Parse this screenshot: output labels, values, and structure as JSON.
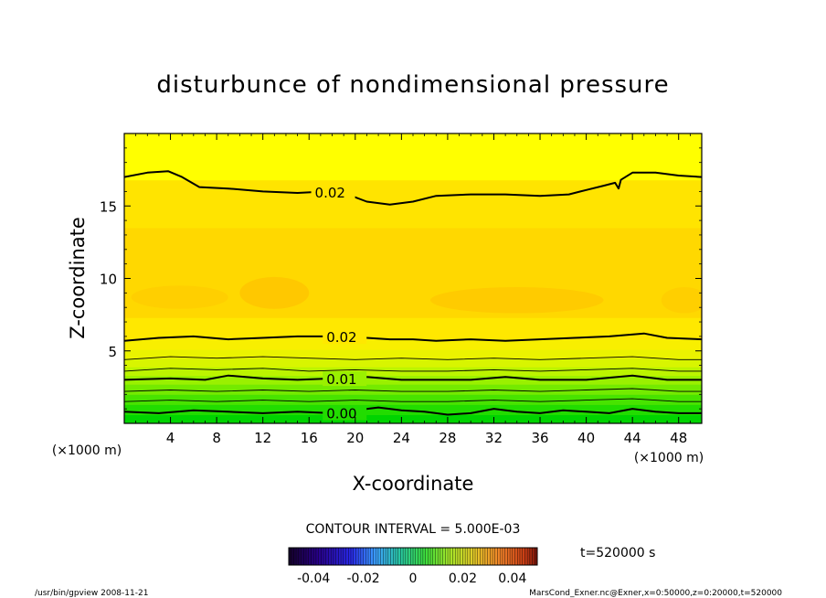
{
  "chart_data": {
    "type": "contour",
    "title": "disturbunce of nondimensional pressure",
    "xlabel": "X-coordinate",
    "ylabel": "Z-coordinate",
    "x_unit_label": "(×1000 m)",
    "y_unit_label": "(×1000 m)",
    "xlim": [
      0,
      50
    ],
    "ylim": [
      0,
      20
    ],
    "x_ticks": [
      4,
      8,
      12,
      16,
      20,
      24,
      28,
      32,
      36,
      40,
      44,
      48
    ],
    "y_ticks": [
      5,
      10,
      15
    ],
    "contour_interval_label": "CONTOUR INTERVAL = 5.000E-03",
    "time_label": "t=520000 s",
    "colorbar": {
      "min": -0.05,
      "max": 0.05,
      "tick_values": [
        -0.04,
        -0.02,
        0,
        0.02,
        0.04
      ],
      "tick_labels": [
        "-0.04",
        "-0.02",
        "0",
        "0.02",
        "0.04"
      ]
    },
    "fill_bands": [
      {
        "z_from": 0.0,
        "z_to": 0.6,
        "level": -0.005,
        "color": "#00d400"
      },
      {
        "z_from": 0.6,
        "z_to": 1.3,
        "level": 0.0,
        "color": "#22dc00"
      },
      {
        "z_from": 1.3,
        "z_to": 2.0,
        "level": 0.005,
        "color": "#48e300"
      },
      {
        "z_from": 2.0,
        "z_to": 2.7,
        "level": 0.008,
        "color": "#74ea00"
      },
      {
        "z_from": 2.7,
        "z_to": 3.3,
        "level": 0.01,
        "color": "#9af000"
      },
      {
        "z_from": 3.3,
        "z_to": 3.9,
        "level": 0.012,
        "color": "#bcf400"
      },
      {
        "z_from": 3.9,
        "z_to": 4.5,
        "level": 0.015,
        "color": "#d8f500"
      },
      {
        "z_from": 4.5,
        "z_to": 5.1,
        "level": 0.017,
        "color": "#ebf300"
      },
      {
        "z_from": 5.1,
        "z_to": 5.8,
        "level": 0.019,
        "color": "#f8ef00"
      },
      {
        "z_from": 5.8,
        "z_to": 7.3,
        "level": 0.021,
        "color": "#ffe800"
      },
      {
        "z_from": 7.3,
        "z_to": 13.5,
        "level": 0.024,
        "color": "#ffd800"
      },
      {
        "z_from": 13.5,
        "z_to": 16.8,
        "level": 0.022,
        "color": "#ffe400"
      },
      {
        "z_from": 16.8,
        "z_to": 20.0,
        "level": 0.018,
        "color": "#ffff00"
      }
    ],
    "contours": [
      {
        "level": "0.02",
        "label": "0.02",
        "label_x": 16.5,
        "thick": true,
        "points": [
          [
            0,
            17.0
          ],
          [
            2,
            17.3
          ],
          [
            3.8,
            17.4
          ],
          [
            5,
            17.0
          ],
          [
            6.5,
            16.3
          ],
          [
            9,
            16.2
          ],
          [
            12,
            16.0
          ],
          [
            15,
            15.9
          ],
          [
            17.5,
            16.0
          ],
          [
            19,
            15.9
          ],
          [
            21,
            15.3
          ],
          [
            23,
            15.1
          ],
          [
            25,
            15.3
          ],
          [
            27,
            15.7
          ],
          [
            30,
            15.8
          ],
          [
            33,
            15.8
          ],
          [
            36,
            15.7
          ],
          [
            38.5,
            15.8
          ],
          [
            40,
            16.1
          ],
          [
            41.5,
            16.4
          ],
          [
            42.5,
            16.6
          ],
          [
            42.8,
            16.2
          ],
          [
            43,
            16.8
          ],
          [
            44,
            17.3
          ],
          [
            46,
            17.3
          ],
          [
            48,
            17.1
          ],
          [
            50,
            17.0
          ]
        ]
      },
      {
        "level": "0.02",
        "label": "0.02",
        "label_x": 17.5,
        "thick": true,
        "points": [
          [
            0,
            5.7
          ],
          [
            3,
            5.9
          ],
          [
            6,
            6.0
          ],
          [
            9,
            5.8
          ],
          [
            12,
            5.9
          ],
          [
            15,
            6.0
          ],
          [
            18,
            6.0
          ],
          [
            21,
            5.9
          ],
          [
            23,
            5.8
          ],
          [
            25,
            5.8
          ],
          [
            27,
            5.7
          ],
          [
            30,
            5.8
          ],
          [
            33,
            5.7
          ],
          [
            36,
            5.8
          ],
          [
            39,
            5.9
          ],
          [
            42,
            6.0
          ],
          [
            45,
            6.2
          ],
          [
            47,
            5.9
          ],
          [
            50,
            5.8
          ]
        ]
      },
      {
        "level": "0.015",
        "label": "",
        "label_x": null,
        "thick": false,
        "points": [
          [
            0,
            4.4
          ],
          [
            4,
            4.6
          ],
          [
            8,
            4.5
          ],
          [
            12,
            4.6
          ],
          [
            16,
            4.5
          ],
          [
            20,
            4.4
          ],
          [
            24,
            4.5
          ],
          [
            28,
            4.4
          ],
          [
            32,
            4.5
          ],
          [
            36,
            4.4
          ],
          [
            40,
            4.5
          ],
          [
            44,
            4.6
          ],
          [
            48,
            4.4
          ],
          [
            50,
            4.4
          ]
        ]
      },
      {
        "level": "0.0125",
        "label": "",
        "label_x": null,
        "thick": false,
        "points": [
          [
            0,
            3.6
          ],
          [
            4,
            3.8
          ],
          [
            8,
            3.7
          ],
          [
            12,
            3.8
          ],
          [
            16,
            3.6
          ],
          [
            20,
            3.7
          ],
          [
            24,
            3.6
          ],
          [
            28,
            3.6
          ],
          [
            32,
            3.7
          ],
          [
            36,
            3.6
          ],
          [
            40,
            3.7
          ],
          [
            44,
            3.8
          ],
          [
            48,
            3.6
          ],
          [
            50,
            3.6
          ]
        ]
      },
      {
        "level": "0.01",
        "label": "0.01",
        "label_x": 17.5,
        "thick": true,
        "points": [
          [
            0,
            3.0
          ],
          [
            4,
            3.1
          ],
          [
            7,
            3.0
          ],
          [
            9,
            3.3
          ],
          [
            12,
            3.1
          ],
          [
            15,
            3.0
          ],
          [
            18,
            3.1
          ],
          [
            21,
            3.2
          ],
          [
            24,
            3.0
          ],
          [
            27,
            3.0
          ],
          [
            30,
            3.0
          ],
          [
            33,
            3.2
          ],
          [
            36,
            3.0
          ],
          [
            40,
            3.0
          ],
          [
            44,
            3.3
          ],
          [
            47,
            3.0
          ],
          [
            50,
            3.0
          ]
        ]
      },
      {
        "level": "0.0075",
        "label": "",
        "label_x": null,
        "thick": false,
        "points": [
          [
            0,
            2.2
          ],
          [
            4,
            2.3
          ],
          [
            8,
            2.2
          ],
          [
            12,
            2.3
          ],
          [
            16,
            2.2
          ],
          [
            20,
            2.3
          ],
          [
            24,
            2.2
          ],
          [
            28,
            2.2
          ],
          [
            32,
            2.3
          ],
          [
            36,
            2.2
          ],
          [
            40,
            2.3
          ],
          [
            44,
            2.4
          ],
          [
            48,
            2.2
          ],
          [
            50,
            2.2
          ]
        ]
      },
      {
        "level": "0.005",
        "label": "",
        "label_x": null,
        "thick": false,
        "points": [
          [
            0,
            1.5
          ],
          [
            4,
            1.6
          ],
          [
            8,
            1.5
          ],
          [
            12,
            1.6
          ],
          [
            16,
            1.5
          ],
          [
            20,
            1.6
          ],
          [
            24,
            1.5
          ],
          [
            28,
            1.5
          ],
          [
            32,
            1.6
          ],
          [
            36,
            1.5
          ],
          [
            40,
            1.6
          ],
          [
            44,
            1.7
          ],
          [
            48,
            1.5
          ],
          [
            50,
            1.5
          ]
        ]
      },
      {
        "level": "0.00",
        "label": "0.00",
        "label_x": 17.5,
        "thick": true,
        "points": [
          [
            0,
            0.8
          ],
          [
            3,
            0.7
          ],
          [
            6,
            0.9
          ],
          [
            9,
            0.8
          ],
          [
            12,
            0.7
          ],
          [
            15,
            0.8
          ],
          [
            18,
            0.7
          ],
          [
            20,
            0.9
          ],
          [
            22,
            1.1
          ],
          [
            24,
            0.9
          ],
          [
            26,
            0.8
          ],
          [
            28,
            0.6
          ],
          [
            30,
            0.7
          ],
          [
            32,
            1.0
          ],
          [
            34,
            0.8
          ],
          [
            36,
            0.7
          ],
          [
            38,
            0.9
          ],
          [
            40,
            0.8
          ],
          [
            42,
            0.7
          ],
          [
            44,
            1.0
          ],
          [
            46,
            0.8
          ],
          [
            48,
            0.7
          ],
          [
            50,
            0.7
          ]
        ]
      }
    ],
    "patches": [
      {
        "cx": 4.8,
        "cy": 8.7,
        "rx": 4.2,
        "ry": 0.8,
        "color": "#ffcf00"
      },
      {
        "cx": 13.0,
        "cy": 9.0,
        "rx": 3.0,
        "ry": 1.1,
        "color": "#ffc800"
      },
      {
        "cx": 34.0,
        "cy": 8.5,
        "rx": 7.5,
        "ry": 0.9,
        "color": "#ffcb00"
      },
      {
        "cx": 48.5,
        "cy": 8.5,
        "rx": 2.0,
        "ry": 0.9,
        "color": "#ffcf00"
      }
    ]
  },
  "footer": {
    "left": "/usr/bin/gpview   2008-11-21",
    "right": "MarsCond_Exner.nc@Exner,x=0:50000,z=0:20000,t=520000"
  }
}
